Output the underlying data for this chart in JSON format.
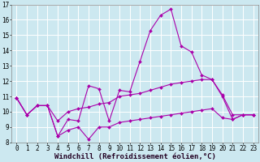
{
  "xlabel": "Windchill (Refroidissement éolien,°C)",
  "background_color": "#cce8f0",
  "grid_color": "#ffffff",
  "line_color": "#aa00aa",
  "x": [
    0,
    1,
    2,
    3,
    4,
    5,
    6,
    7,
    8,
    9,
    10,
    11,
    12,
    13,
    14,
    15,
    16,
    17,
    18,
    19,
    20,
    21,
    22,
    23
  ],
  "line1": [
    10.9,
    9.8,
    10.4,
    10.4,
    8.4,
    9.5,
    9.4,
    11.7,
    11.5,
    9.4,
    11.4,
    11.3,
    13.3,
    15.3,
    16.3,
    16.7,
    14.3,
    13.9,
    12.4,
    12.1,
    11.0,
    9.5,
    9.8,
    9.8
  ],
  "line2": [
    10.9,
    9.8,
    10.4,
    10.4,
    9.4,
    10.0,
    10.2,
    10.3,
    10.5,
    10.6,
    11.0,
    11.1,
    11.2,
    11.4,
    11.6,
    11.8,
    11.9,
    12.0,
    12.1,
    12.1,
    11.1,
    9.8,
    9.8,
    9.8
  ],
  "line3": [
    10.9,
    9.8,
    10.4,
    10.4,
    8.4,
    8.8,
    9.0,
    8.2,
    9.0,
    9.0,
    9.3,
    9.4,
    9.5,
    9.6,
    9.7,
    9.8,
    9.9,
    10.0,
    10.1,
    10.2,
    9.6,
    9.5,
    9.8,
    9.8
  ],
  "ylim": [
    8,
    17
  ],
  "xlim": [
    -0.5,
    23.5
  ],
  "yticks": [
    8,
    9,
    10,
    11,
    12,
    13,
    14,
    15,
    16,
    17
  ],
  "xticks": [
    0,
    1,
    2,
    3,
    4,
    5,
    6,
    7,
    8,
    9,
    10,
    11,
    12,
    13,
    14,
    15,
    16,
    17,
    18,
    19,
    20,
    21,
    22,
    23
  ],
  "tick_fontsize": 5.5,
  "xlabel_fontsize": 6.5
}
